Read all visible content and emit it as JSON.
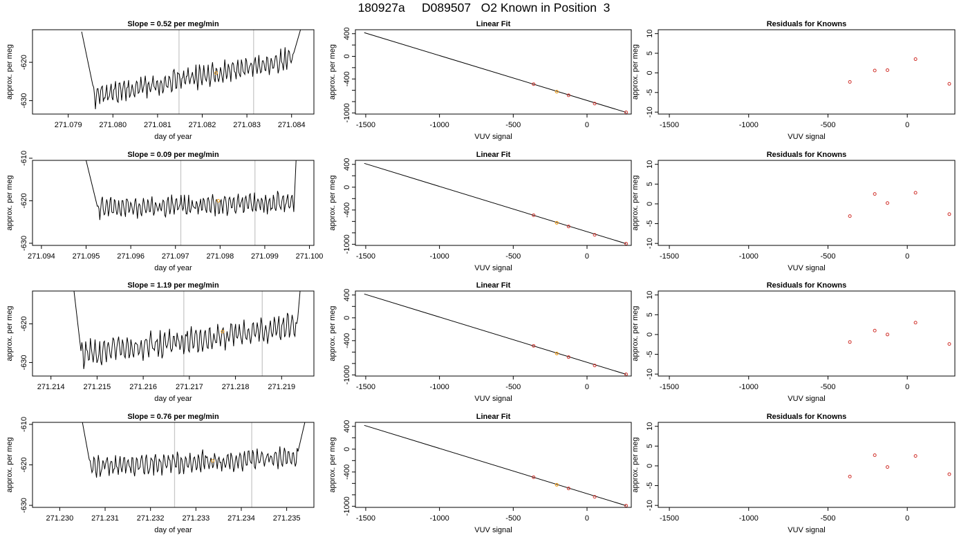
{
  "page_title": "180927a     D089507   O2 Known in Position  3",
  "chart_data": [
    {
      "type": "line",
      "title": "Slope =  0.52  per meg/min",
      "xlabel": "day of year",
      "ylabel": "approx. per meg",
      "xlim": [
        271.0782,
        271.0845
      ],
      "ylim": [
        -633.5,
        -611.5
      ],
      "x_ticks": [
        271.079,
        271.08,
        271.081,
        271.082,
        271.083,
        271.084
      ],
      "x_tick_labels": [
        "271.079",
        "271.080",
        "271.081",
        "271.082",
        "271.083",
        "271.084"
      ],
      "y_ticks": [
        -630,
        -620
      ],
      "y_tick_labels": [
        "-630",
        "-620"
      ],
      "vlines": [
        271.08148,
        271.08315
      ],
      "marker": {
        "x": 271.08231,
        "y": -622.8
      },
      "series": [
        {
          "x_start": 271.0793,
          "x_end": 271.0842,
          "y_start": -612,
          "y_end": -611.5,
          "edge_hi": -612,
          "settled": {
            "from": 271.07955,
            "to": 271.08405,
            "start": -629.0,
            "end": -619.0,
            "amp": 2.2,
            "seed": 7
          }
        }
      ]
    },
    {
      "type": "scatter",
      "title": "Linear Fit",
      "xlabel": "VUV signal",
      "ylabel": "approx. per meg",
      "xlim": [
        -1570,
        300
      ],
      "ylim": [
        -1020,
        470
      ],
      "x_ticks": [
        -1500,
        -1000,
        -500,
        0
      ],
      "x_tick_labels": [
        "-1500",
        "-1000",
        "-500",
        "0"
      ],
      "y_ticks": [
        400,
        0,
        -400,
        -1000
      ],
      "y_tick_labels": [
        "400",
        "0",
        "-400",
        "-1000"
      ],
      "y_minor_ticks": [
        200,
        -200,
        -600,
        -800
      ],
      "fit_line": {
        "x": [
          -1510,
          265
        ],
        "y": [
          418,
          -990
        ]
      },
      "points": {
        "x": [
          -362,
          -125,
          52,
          265
        ],
        "y": [
          -492,
          -688,
          -835,
          -990
        ]
      },
      "highlight": {
        "x": -205,
        "y": -624
      }
    },
    {
      "type": "scatter",
      "title": "Residuals for Knowns",
      "xlabel": "VUV signal",
      "ylabel": "approx. per meg",
      "xlim": [
        -1570,
        300
      ],
      "ylim": [
        -10.5,
        11
      ],
      "x_ticks": [
        -1500,
        -1000,
        -500,
        0
      ],
      "x_tick_labels": [
        "-1500",
        "-1000",
        "-500",
        "0"
      ],
      "y_ticks": [
        10,
        5,
        0,
        -5,
        -10
      ],
      "y_tick_labels": [
        "10",
        "5",
        "0",
        "-5",
        "-10"
      ],
      "points": {
        "x": [
          -362,
          -205,
          -125,
          52,
          265
        ],
        "y": [
          -2.3,
          0.6,
          0.7,
          3.5,
          -2.8
        ]
      }
    },
    {
      "type": "line",
      "title": "Slope =  0.09  per meg/min",
      "xlabel": "day of year",
      "ylabel": "approx. per meg",
      "xlim": [
        271.0938,
        271.1001
      ],
      "ylim": [
        -630.5,
        -610.5
      ],
      "x_ticks": [
        271.094,
        271.095,
        271.096,
        271.097,
        271.098,
        271.099,
        271.1
      ],
      "x_tick_labels": [
        "271.094",
        "271.095",
        "271.096",
        "271.097",
        "271.098",
        "271.099",
        "271.100"
      ],
      "y_ticks": [
        -630,
        -620,
        -610
      ],
      "y_tick_labels": [
        "-630",
        "-620",
        "-610"
      ],
      "vlines": [
        271.09712,
        271.09878
      ],
      "marker": {
        "x": 271.09796,
        "y": -620.0
      },
      "series": [
        {
          "x_start": 271.095,
          "x_end": 271.0997,
          "y_start": -610.5,
          "y_end": -610.5,
          "edge_hi": -610.5,
          "settled": {
            "from": 271.09525,
            "to": 271.09965,
            "start": -621.8,
            "end": -620.2,
            "amp": 1.8,
            "seed": 19
          }
        }
      ]
    },
    {
      "type": "scatter",
      "title": "Linear Fit",
      "xlabel": "VUV signal",
      "ylabel": "approx. per meg",
      "xlim": [
        -1570,
        300
      ],
      "ylim": [
        -1020,
        470
      ],
      "x_ticks": [
        -1500,
        -1000,
        -500,
        0
      ],
      "x_tick_labels": [
        "-1500",
        "-1000",
        "-500",
        "0"
      ],
      "y_ticks": [
        400,
        0,
        -400,
        -1000
      ],
      "y_tick_labels": [
        "400",
        "0",
        "-400",
        "-1000"
      ],
      "y_minor_ticks": [
        200,
        -200,
        -600,
        -800
      ],
      "fit_line": {
        "x": [
          -1510,
          265
        ],
        "y": [
          418,
          -990
        ]
      },
      "points": {
        "x": [
          -362,
          -125,
          52,
          265
        ],
        "y": [
          -492,
          -688,
          -835,
          -990
        ]
      },
      "highlight": {
        "x": -205,
        "y": -624
      }
    },
    {
      "type": "scatter",
      "title": "Residuals for Knowns",
      "xlabel": "VUV signal",
      "ylabel": "approx. per meg",
      "xlim": [
        -1570,
        300
      ],
      "ylim": [
        -10.5,
        11
      ],
      "x_ticks": [
        -1500,
        -1000,
        -500,
        0
      ],
      "x_tick_labels": [
        "-1500",
        "-1000",
        "-500",
        "0"
      ],
      "y_ticks": [
        10,
        5,
        0,
        -5,
        -10
      ],
      "y_tick_labels": [
        "10",
        "5",
        "0",
        "-5",
        "-10"
      ],
      "points": {
        "x": [
          -362,
          -205,
          -125,
          52,
          265
        ],
        "y": [
          -3.1,
          2.5,
          0.2,
          2.8,
          -2.6
        ]
      }
    },
    {
      "type": "line",
      "title": "Slope =  1.19  per meg/min",
      "xlabel": "day of year",
      "ylabel": "approx. per meg",
      "xlim": [
        271.2136,
        271.2197
      ],
      "ylim": [
        -633.5,
        -611.5
      ],
      "x_ticks": [
        271.214,
        271.215,
        271.216,
        271.217,
        271.218,
        271.219
      ],
      "x_tick_labels": [
        "271.214",
        "271.215",
        "271.216",
        "271.217",
        "271.218",
        "271.219"
      ],
      "y_ticks": [
        -630,
        -620
      ],
      "y_tick_labels": [
        "-630",
        "-620"
      ],
      "vlines": [
        271.21688,
        271.21858
      ],
      "marker": {
        "x": 271.21772,
        "y": -622.0
      },
      "series": [
        {
          "x_start": 271.2145,
          "x_end": 271.2194,
          "y_start": -611.5,
          "y_end": -611.5,
          "edge_hi": -611.5,
          "settled": {
            "from": 271.21465,
            "to": 271.21935,
            "start": -628.0,
            "end": -620.5,
            "amp": 2.5,
            "seed": 31
          }
        }
      ]
    },
    {
      "type": "scatter",
      "title": "Linear Fit",
      "xlabel": "VUV signal",
      "ylabel": "approx. per meg",
      "xlim": [
        -1570,
        300
      ],
      "ylim": [
        -1020,
        470
      ],
      "x_ticks": [
        -1500,
        -1000,
        -500,
        0
      ],
      "x_tick_labels": [
        "-1500",
        "-1000",
        "-500",
        "0"
      ],
      "y_ticks": [
        400,
        0,
        -400,
        -1000
      ],
      "y_tick_labels": [
        "400",
        "0",
        "-400",
        "-1000"
      ],
      "y_minor_ticks": [
        200,
        -200,
        -600,
        -800
      ],
      "fit_line": {
        "x": [
          -1510,
          265
        ],
        "y": [
          418,
          -990
        ]
      },
      "points": {
        "x": [
          -362,
          -125,
          52,
          265
        ],
        "y": [
          -492,
          -688,
          -835,
          -990
        ]
      },
      "highlight": {
        "x": -205,
        "y": -624
      }
    },
    {
      "type": "scatter",
      "title": "Residuals for Knowns",
      "xlabel": "VUV signal",
      "ylabel": "approx. per meg",
      "xlim": [
        -1570,
        300
      ],
      "ylim": [
        -10.5,
        11
      ],
      "x_ticks": [
        -1500,
        -1000,
        -500,
        0
      ],
      "x_tick_labels": [
        "-1500",
        "-1000",
        "-500",
        "0"
      ],
      "y_ticks": [
        10,
        5,
        0,
        -5,
        -10
      ],
      "y_tick_labels": [
        "10",
        "5",
        "0",
        "-5",
        "-10"
      ],
      "points": {
        "x": [
          -362,
          -205,
          -125,
          52,
          265
        ],
        "y": [
          -1.9,
          1.0,
          0.0,
          3.0,
          -2.4
        ]
      }
    },
    {
      "type": "line",
      "title": "Slope =  0.76  per meg/min",
      "xlabel": "day of year",
      "ylabel": "approx. per meg",
      "xlim": [
        271.2294,
        271.2356
      ],
      "ylim": [
        -630.5,
        -609.5
      ],
      "x_ticks": [
        271.23,
        271.231,
        271.232,
        271.233,
        271.234,
        271.235
      ],
      "x_tick_labels": [
        "271.230",
        "271.231",
        "271.232",
        "271.233",
        "271.234",
        "271.235"
      ],
      "y_ticks": [
        -630,
        -620,
        -610
      ],
      "y_tick_labels": [
        "-630",
        "-620",
        "-610"
      ],
      "vlines": [
        271.23253,
        271.23423
      ],
      "marker": {
        "x": 271.23337,
        "y": -619.0
      },
      "series": [
        {
          "x_start": 271.2305,
          "x_end": 271.2354,
          "y_start": -609.5,
          "y_end": -609.5,
          "edge_hi": -609.5,
          "settled": {
            "from": 271.23065,
            "to": 271.23525,
            "start": -620.5,
            "end": -618.0,
            "amp": 1.9,
            "seed": 47
          }
        }
      ]
    },
    {
      "type": "scatter",
      "title": "Linear Fit",
      "xlabel": "VUV signal",
      "ylabel": "approx. per meg",
      "xlim": [
        -1570,
        300
      ],
      "ylim": [
        -1020,
        470
      ],
      "x_ticks": [
        -1500,
        -1000,
        -500,
        0
      ],
      "x_tick_labels": [
        "-1500",
        "-1000",
        "-500",
        "0"
      ],
      "y_ticks": [
        400,
        0,
        -400,
        -1000
      ],
      "y_tick_labels": [
        "400",
        "0",
        "-400",
        "-1000"
      ],
      "y_minor_ticks": [
        200,
        -200,
        -600,
        -800
      ],
      "fit_line": {
        "x": [
          -1510,
          265
        ],
        "y": [
          418,
          -990
        ]
      },
      "points": {
        "x": [
          -362,
          -125,
          52,
          265
        ],
        "y": [
          -492,
          -688,
          -835,
          -990
        ]
      },
      "highlight": {
        "x": -205,
        "y": -624
      }
    },
    {
      "type": "scatter",
      "title": "Residuals for Knowns",
      "xlabel": "VUV signal",
      "ylabel": "approx. per meg",
      "xlim": [
        -1570,
        300
      ],
      "ylim": [
        -10.5,
        11
      ],
      "x_ticks": [
        -1500,
        -1000,
        -500,
        0
      ],
      "x_tick_labels": [
        "-1500",
        "-1000",
        "-500",
        "0"
      ],
      "y_ticks": [
        10,
        5,
        0,
        -5,
        -10
      ],
      "y_tick_labels": [
        "10",
        "5",
        "0",
        "-5",
        "-10"
      ],
      "points": {
        "x": [
          -362,
          -205,
          -125,
          52,
          265
        ],
        "y": [
          -2.7,
          2.7,
          -0.3,
          2.5,
          -2.1
        ]
      }
    }
  ],
  "colors": {
    "line": "#000000",
    "vline": "#c8c8c8",
    "point": "#d0302a",
    "highlight": "#f0a020",
    "frame": "#000000"
  }
}
